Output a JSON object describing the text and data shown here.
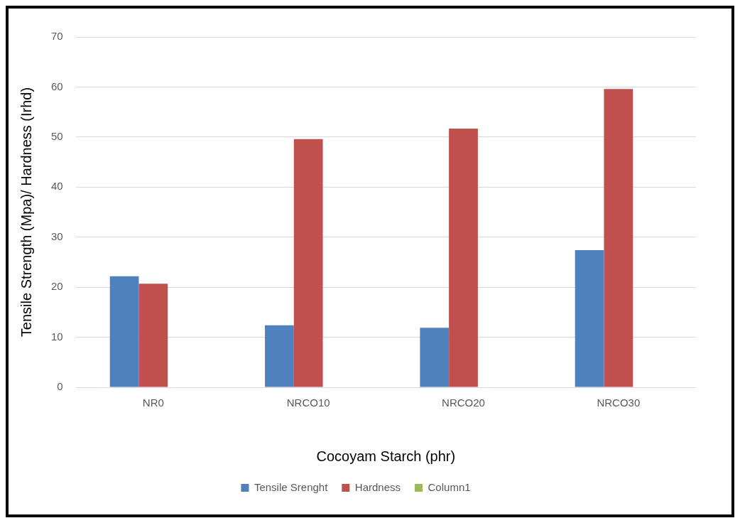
{
  "chart_data": {
    "type": "bar",
    "xlabel": "Cocoyam Starch (phr)",
    "ylabel": "Tensile Strength (Mpa)/ Hardness (Irhd)",
    "categories": [
      "NR0",
      "NRCO10",
      "NRCO20",
      "NRCO30"
    ],
    "series": [
      {
        "name": "Tensile Srenght",
        "color": "#4f81bd",
        "values": [
          22.2,
          12.4,
          11.9,
          27.4
        ]
      },
      {
        "name": "Hardness",
        "color": "#c0504d",
        "values": [
          20.7,
          49.6,
          51.7,
          59.6
        ]
      },
      {
        "name": "Column1",
        "color": "#9bbb59",
        "values": [
          null,
          null,
          null,
          null
        ]
      }
    ],
    "ylim": [
      0,
      70
    ],
    "yticks": [
      0,
      10,
      20,
      30,
      40,
      50,
      60,
      70
    ],
    "grid": "y",
    "legend": "bottom"
  }
}
